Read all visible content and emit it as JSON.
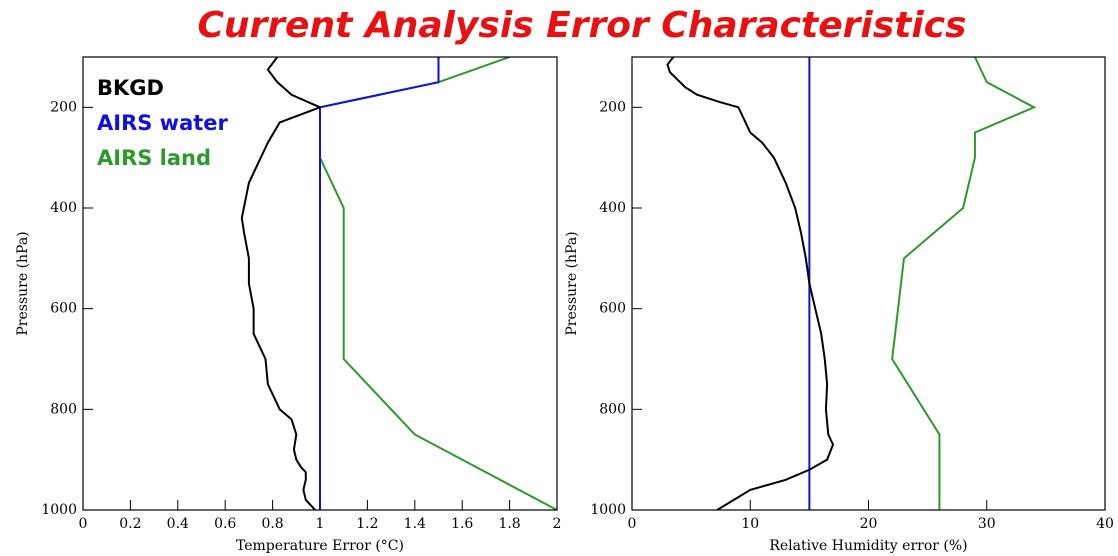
{
  "title": "Current Analysis Error Characteristics",
  "chart_data": [
    {
      "type": "line",
      "xlabel": "Temperature Error (°C)",
      "ylabel": "Pressure (hPa)",
      "xlim": [
        0,
        2
      ],
      "xticks": [
        0,
        0.2,
        0.4,
        0.6,
        0.8,
        1,
        1.2,
        1.4,
        1.6,
        1.8,
        2
      ],
      "ylim": [
        1000,
        100
      ],
      "yticks": [
        200,
        400,
        600,
        800,
        1000
      ],
      "legend": "upper left",
      "series": [
        {
          "name": "AIRS land",
          "color": "#2a9a2a",
          "x": [
            1.8,
            1.5,
            1.0,
            1.0,
            1.1,
            1.1,
            1.4,
            2.0
          ],
          "y": [
            100,
            150,
            200,
            300,
            400,
            700,
            850,
            1000
          ]
        },
        {
          "name": "AIRS water",
          "color": "#1010e0",
          "x": [
            1.5,
            1.5,
            1.0,
            1.0
          ],
          "y": [
            100,
            150,
            200,
            1000
          ]
        },
        {
          "name": "BKGD",
          "color": "#000000",
          "x": [
            0.82,
            0.78,
            0.82,
            0.88,
            1.0,
            0.83,
            0.78,
            0.75,
            0.7,
            0.67,
            0.68,
            0.7,
            0.7,
            0.72,
            0.72,
            0.77,
            0.78,
            0.83,
            0.88,
            0.9,
            0.89,
            0.9,
            0.92,
            0.94,
            0.94,
            0.93,
            0.94,
            0.98
          ],
          "y": [
            100,
            125,
            150,
            175,
            200,
            230,
            270,
            300,
            350,
            420,
            450,
            500,
            550,
            600,
            650,
            700,
            750,
            800,
            820,
            850,
            880,
            900,
            915,
            925,
            940,
            960,
            980,
            1000
          ]
        }
      ]
    },
    {
      "type": "line",
      "xlabel": "Relative Humidity error (%)",
      "ylabel": "Pressure (hPa)",
      "xlim": [
        0,
        40
      ],
      "xticks": [
        0,
        10,
        20,
        30,
        40
      ],
      "ylim": [
        1000,
        100
      ],
      "yticks": [
        200,
        400,
        600,
        800,
        1000
      ],
      "series": [
        {
          "name": "AIRS land",
          "color": "#2a9a2a",
          "x": [
            29,
            30,
            34,
            29,
            29,
            28,
            23,
            22,
            26,
            26
          ],
          "y": [
            100,
            150,
            200,
            250,
            300,
            400,
            500,
            700,
            850,
            1000
          ]
        },
        {
          "name": "AIRS water",
          "color": "#1010e0",
          "x": [
            15,
            15
          ],
          "y": [
            100,
            1000
          ]
        },
        {
          "name": "BKGD",
          "color": "#000000",
          "x": [
            3.5,
            3,
            3.2,
            4.5,
            5.5,
            7.5,
            9,
            10,
            11,
            12,
            13,
            13.8,
            14.3,
            14.7,
            15,
            15.5,
            16,
            16.3,
            16.5,
            16.4,
            16.6,
            17,
            16.5,
            15,
            13,
            10,
            7.2
          ],
          "y": [
            100,
            115,
            130,
            160,
            175,
            190,
            200,
            250,
            270,
            300,
            350,
            400,
            450,
            500,
            550,
            600,
            650,
            700,
            750,
            800,
            850,
            870,
            900,
            920,
            940,
            960,
            1000
          ]
        }
      ]
    }
  ]
}
